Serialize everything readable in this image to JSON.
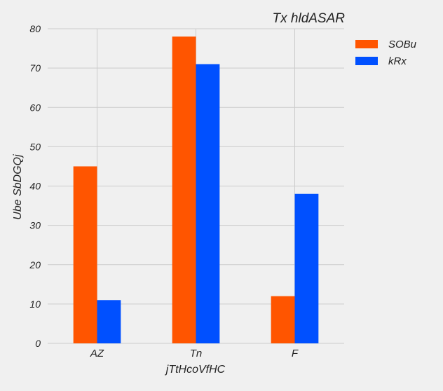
{
  "chart_data": {
    "type": "bar",
    "title": "Tx hldASAR",
    "xlabel": "jTtHcoVfHC",
    "ylabel": "Ube SbDGQj",
    "categories": [
      "AZ",
      "Tn",
      "F"
    ],
    "series": [
      {
        "name": "SOBu",
        "values": [
          45,
          78,
          12
        ],
        "color": "#ff5500"
      },
      {
        "name": "kRx",
        "values": [
          11,
          71,
          38
        ],
        "color": "#0050ff"
      }
    ],
    "ylim": [
      0,
      80
    ],
    "yticks": [
      0,
      10,
      20,
      30,
      40,
      50,
      60,
      70,
      80
    ],
    "grid": true,
    "legend": "top-right"
  }
}
